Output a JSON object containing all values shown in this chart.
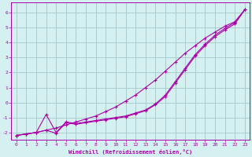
{
  "xlabel": "Windchill (Refroidissement éolien,°C)",
  "bg_color": "#d5f0f0",
  "grid_color": "#aacccc",
  "line_color": "#aa00aa",
  "xlim": [
    -0.5,
    23.5
  ],
  "ylim": [
    -2.5,
    6.7
  ],
  "xticks": [
    0,
    1,
    2,
    3,
    4,
    5,
    6,
    7,
    8,
    9,
    10,
    11,
    12,
    13,
    14,
    15,
    16,
    17,
    18,
    19,
    20,
    21,
    22,
    23
  ],
  "yticks": [
    -2,
    -1,
    0,
    1,
    2,
    3,
    4,
    5,
    6
  ],
  "line1_x": [
    0,
    1,
    2,
    3,
    4,
    5,
    6,
    7,
    8,
    9,
    10,
    11,
    12,
    13,
    14,
    15,
    16,
    17,
    18,
    19,
    20,
    21,
    22,
    23
  ],
  "line1_y": [
    -2.2,
    -2.1,
    -2.0,
    -1.85,
    -1.7,
    -1.5,
    -1.3,
    -1.1,
    -0.9,
    -0.6,
    -0.3,
    0.1,
    0.5,
    1.0,
    1.5,
    2.1,
    2.7,
    3.3,
    3.8,
    4.3,
    4.7,
    5.1,
    5.4,
    6.2
  ],
  "line2_x": [
    0,
    1,
    2,
    3,
    4,
    5,
    6,
    7,
    8,
    9,
    10,
    11,
    12,
    13,
    14,
    15,
    16,
    17,
    18,
    19,
    20,
    21,
    22,
    23
  ],
  "line2_y": [
    -2.2,
    -2.1,
    -2.0,
    -0.8,
    -2.0,
    -1.3,
    -1.4,
    -1.3,
    -1.2,
    -1.1,
    -1.0,
    -0.9,
    -0.7,
    -0.5,
    -0.1,
    0.5,
    1.4,
    2.3,
    3.2,
    3.9,
    4.5,
    4.95,
    5.35,
    6.2
  ],
  "line3_x": [
    0,
    1,
    2,
    3,
    4,
    5,
    6,
    7,
    8,
    9,
    10,
    11,
    12,
    13,
    14,
    15,
    16,
    17,
    18,
    19,
    20,
    21,
    22,
    23
  ],
  "line3_y": [
    -2.2,
    -2.1,
    -2.0,
    -1.85,
    -2.05,
    -1.35,
    -1.45,
    -1.35,
    -1.25,
    -1.15,
    -1.05,
    -0.95,
    -0.75,
    -0.55,
    -0.15,
    0.4,
    1.3,
    2.2,
    3.1,
    3.8,
    4.4,
    4.85,
    5.25,
    6.2
  ]
}
